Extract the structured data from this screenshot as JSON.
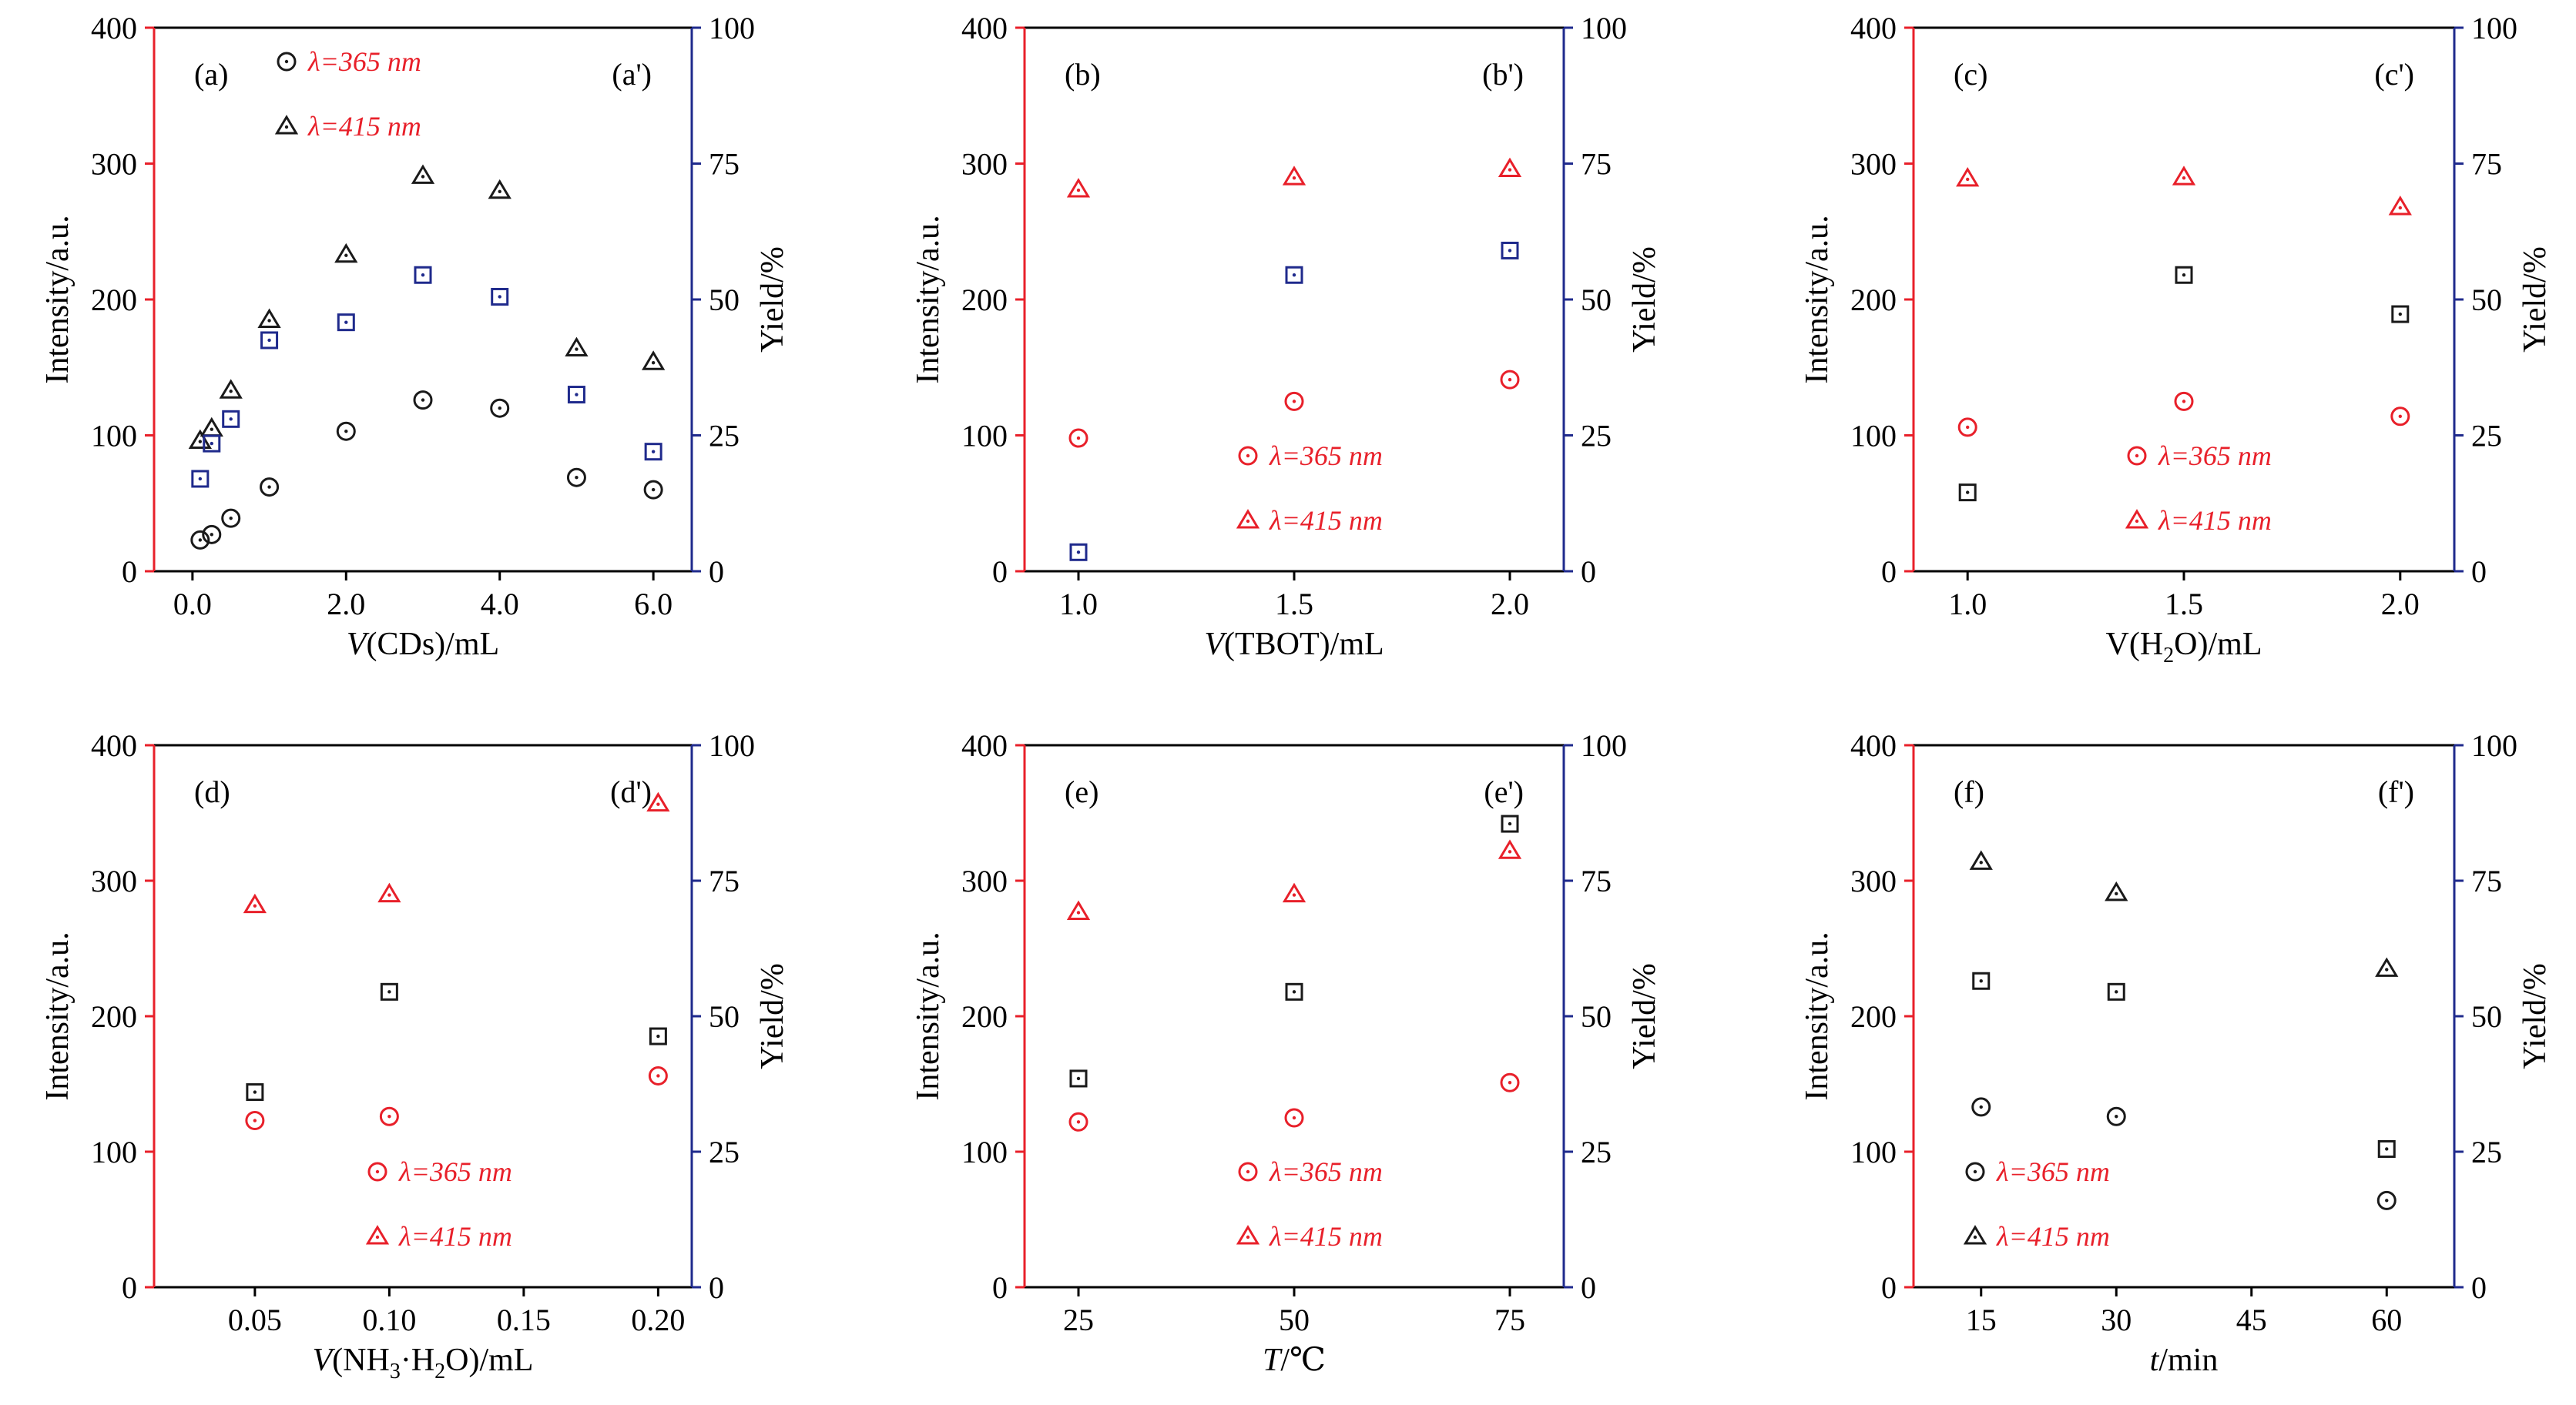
{
  "figure": {
    "colors": {
      "axis_left": "#e8202a",
      "axis_right": "#1f2a8c",
      "frame": "#000000",
      "black_marker": "#1a1a1a",
      "red_marker": "#e8202a",
      "blue_marker": "#1f2a8c",
      "legend_text": "#e8202a"
    },
    "legend": {
      "label_365": "λ=365 nm",
      "label_415": "λ=415 nm"
    }
  },
  "chart_data": [
    {
      "type": "scatter",
      "panel": "a",
      "tag_left": "(a)",
      "tag_right": "(a')",
      "xlabel_main": "V",
      "xlabel_rest": "(CDs)/mL",
      "xlabel_italic_main": true,
      "ylabel_left": "Intensity/a.u.",
      "ylabel_right": "Yield/%",
      "xlim": [
        -0.5,
        6.5
      ],
      "ylim_left": [
        0,
        400
      ],
      "ylim_right": [
        0,
        100
      ],
      "xticks": [
        0.0,
        2.0,
        4.0,
        6.0
      ],
      "xtick_labels": [
        "0.0",
        "2.0",
        "4.0",
        "6.0"
      ],
      "yticks_left": [
        0,
        100,
        200,
        300,
        400
      ],
      "yticks_right": [
        0,
        25,
        50,
        75,
        100
      ],
      "legend_position": "top",
      "series": [
        {
          "name": "λ=365 nm",
          "marker": "circle",
          "color": "black",
          "axis": "left",
          "x": [
            0.1,
            0.25,
            0.5,
            1.0,
            2.0,
            3.0,
            4.0,
            5.0,
            6.0
          ],
          "y": [
            23,
            27,
            39,
            62,
            103,
            126,
            120,
            69,
            60
          ]
        },
        {
          "name": "λ=415 nm",
          "marker": "triangle",
          "color": "black",
          "axis": "left",
          "x": [
            0.1,
            0.25,
            0.5,
            1.0,
            2.0,
            3.0,
            4.0,
            5.0,
            6.0
          ],
          "y": [
            96,
            105,
            133,
            185,
            233,
            291,
            280,
            164,
            154
          ]
        },
        {
          "marker": "square",
          "color": "blue",
          "axis": "right",
          "x": [
            0.1,
            0.25,
            0.5,
            1.0,
            2.0,
            3.0,
            4.0,
            5.0,
            6.0
          ],
          "y": [
            17,
            23.5,
            28,
            42.5,
            45.8,
            54.5,
            50.5,
            32.5,
            22
          ]
        }
      ]
    },
    {
      "type": "scatter",
      "panel": "b",
      "tag_left": "(b)",
      "tag_right": "(b')",
      "xlabel_main": "V",
      "xlabel_rest": "(TBOT)/mL",
      "xlabel_italic_main": true,
      "ylabel_left": "Intensity/a.u.",
      "ylabel_right": "Yield/%",
      "xlim": [
        0.875,
        2.125
      ],
      "ylim_left": [
        0,
        400
      ],
      "ylim_right": [
        0,
        100
      ],
      "xticks": [
        1.0,
        1.5,
        2.0
      ],
      "xtick_labels": [
        "1.0",
        "1.5",
        "2.0"
      ],
      "yticks_left": [
        0,
        100,
        200,
        300,
        400
      ],
      "yticks_right": [
        0,
        25,
        50,
        75,
        100
      ],
      "legend_position": "bottom-center",
      "series": [
        {
          "name": "λ=365 nm",
          "marker": "circle",
          "color": "red",
          "axis": "left",
          "x": [
            1.0,
            1.5,
            2.0
          ],
          "y": [
            98,
            125,
            141
          ]
        },
        {
          "name": "λ=415 nm",
          "marker": "triangle",
          "color": "red",
          "axis": "left",
          "x": [
            1.0,
            1.5,
            2.0
          ],
          "y": [
            281,
            290,
            296
          ]
        },
        {
          "marker": "square",
          "color": "blue",
          "axis": "right",
          "x": [
            1.0,
            1.5,
            2.0
          ],
          "y": [
            3.5,
            54.5,
            59
          ]
        }
      ]
    },
    {
      "type": "scatter",
      "panel": "c",
      "tag_left": "(c)",
      "tag_right": "(c')",
      "xlabel_main": "V(H",
      "xlabel_sub": "2",
      "xlabel_rest": "O)/mL",
      "xlabel_italic_main": false,
      "ylabel_left": "Intensity/a.u.",
      "ylabel_right": "Yield/%",
      "xlim": [
        0.875,
        2.125
      ],
      "ylim_left": [
        0,
        400
      ],
      "ylim_right": [
        0,
        100
      ],
      "xticks": [
        1.0,
        1.5,
        2.0
      ],
      "xtick_labels": [
        "1.0",
        "1.5",
        "2.0"
      ],
      "yticks_left": [
        0,
        100,
        200,
        300,
        400
      ],
      "yticks_right": [
        0,
        25,
        50,
        75,
        100
      ],
      "legend_position": "bottom-center",
      "series": [
        {
          "name": "λ=365 nm",
          "marker": "circle",
          "color": "red",
          "axis": "left",
          "x": [
            1.0,
            1.5,
            2.0
          ],
          "y": [
            106,
            125,
            114
          ]
        },
        {
          "name": "λ=415 nm",
          "marker": "triangle",
          "color": "red",
          "axis": "left",
          "x": [
            1.0,
            1.5,
            2.0
          ],
          "y": [
            289,
            290,
            268
          ]
        },
        {
          "marker": "square",
          "color": "black",
          "axis": "right",
          "x": [
            1.0,
            1.5,
            2.0
          ],
          "y": [
            14.5,
            54.5,
            47.3
          ]
        }
      ]
    },
    {
      "type": "scatter",
      "panel": "d",
      "tag_left": "(d)",
      "tag_right": "(d')",
      "xlabel_main": "V",
      "xlabel_rest": "(NH",
      "xlabel_sub": "3",
      "xlabel_rest2": "·H",
      "xlabel_sub2": "2",
      "xlabel_rest3": "O)/mL",
      "xlabel_italic_main": true,
      "ylabel_left": "Intensity/a.u.",
      "ylabel_right": "Yield/%",
      "xlim": [
        0.0125,
        0.2125
      ],
      "ylim_left": [
        0,
        400
      ],
      "ylim_right": [
        0,
        100
      ],
      "xticks": [
        0.05,
        0.1,
        0.15,
        0.2
      ],
      "xtick_labels": [
        "0.05",
        "0.10",
        "0.15",
        "0.20"
      ],
      "yticks_left": [
        0,
        100,
        200,
        300,
        400
      ],
      "yticks_right": [
        0,
        25,
        50,
        75,
        100
      ],
      "legend_position": "bottom-center",
      "series": [
        {
          "name": "λ=365 nm",
          "marker": "circle",
          "color": "red",
          "axis": "left",
          "x": [
            0.05,
            0.1,
            0.2
          ],
          "y": [
            123,
            126,
            156
          ]
        },
        {
          "name": "λ=415 nm",
          "marker": "triangle",
          "color": "red",
          "axis": "left",
          "x": [
            0.05,
            0.1,
            0.2
          ],
          "y": [
            282,
            290,
            357
          ]
        },
        {
          "marker": "square",
          "color": "black",
          "axis": "right",
          "x": [
            0.05,
            0.1,
            0.2
          ],
          "y": [
            36,
            54.5,
            46.3
          ]
        }
      ]
    },
    {
      "type": "scatter",
      "panel": "e",
      "tag_left": "(e)",
      "tag_right": "(e')",
      "xlabel_main": "T",
      "xlabel_rest": "/℃",
      "xlabel_italic_main": true,
      "ylabel_left": "Intensity/a.u.",
      "ylabel_right": "Yield/%",
      "xlim": [
        18.75,
        81.25
      ],
      "ylim_left": [
        0,
        400
      ],
      "ylim_right": [
        0,
        100
      ],
      "xticks": [
        25,
        50,
        75
      ],
      "xtick_labels": [
        "25",
        "50",
        "75"
      ],
      "yticks_left": [
        0,
        100,
        200,
        300,
        400
      ],
      "yticks_right": [
        0,
        25,
        50,
        75,
        100
      ],
      "legend_position": "bottom-center",
      "series": [
        {
          "name": "λ=365 nm",
          "marker": "circle",
          "color": "red",
          "axis": "left",
          "x": [
            25,
            50,
            75
          ],
          "y": [
            122,
            125,
            151
          ]
        },
        {
          "name": "λ=415 nm",
          "marker": "triangle",
          "color": "red",
          "axis": "left",
          "x": [
            25,
            50,
            75
          ],
          "y": [
            277,
            290,
            322
          ]
        },
        {
          "marker": "square",
          "color": "black",
          "axis": "right",
          "x": [
            25,
            50,
            75
          ],
          "y": [
            38.5,
            54.5,
            85.5
          ]
        }
      ]
    },
    {
      "type": "scatter",
      "panel": "f",
      "tag_left": "(f)",
      "tag_right": "(f')",
      "xlabel_main": "t",
      "xlabel_rest": "/min",
      "xlabel_italic_main": true,
      "ylabel_left": "Intensity/a.u.",
      "ylabel_right": "Yield/%",
      "xlim": [
        7.5,
        67.5
      ],
      "ylim_left": [
        0,
        400
      ],
      "ylim_right": [
        0,
        100
      ],
      "xticks": [
        15,
        30,
        45,
        60
      ],
      "xtick_labels": [
        "15",
        "30",
        "45",
        "60"
      ],
      "yticks_left": [
        0,
        100,
        200,
        300,
        400
      ],
      "yticks_right": [
        0,
        25,
        50,
        75,
        100
      ],
      "legend_position": "bottom-left",
      "series": [
        {
          "name": "λ=365 nm",
          "marker": "circle",
          "color": "black",
          "axis": "left",
          "x": [
            15,
            30,
            60
          ],
          "y": [
            133,
            126,
            64
          ]
        },
        {
          "name": "λ=415 nm",
          "marker": "triangle",
          "color": "black",
          "axis": "left",
          "x": [
            15,
            30,
            60
          ],
          "y": [
            314,
            291,
            235
          ]
        },
        {
          "marker": "square",
          "color": "black",
          "axis": "right",
          "x": [
            15,
            30,
            60
          ],
          "y": [
            56.5,
            54.5,
            25.5
          ]
        }
      ]
    }
  ]
}
